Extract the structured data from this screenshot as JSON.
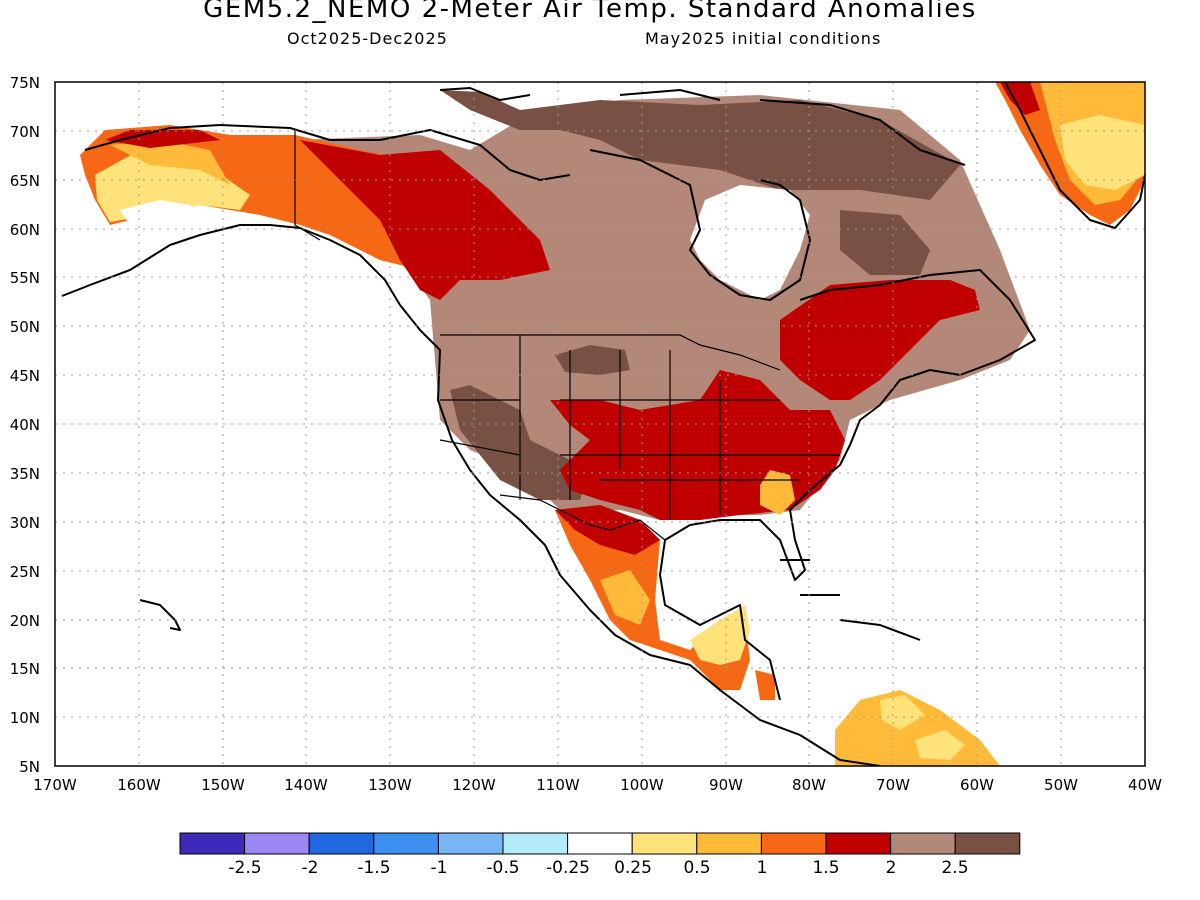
{
  "title": "GEM5.2_NEMO 2-Meter Air Temp. Standard Anomalies",
  "valid_period": "Oct2025-Dec2025",
  "initial_conditions": "May2025 initial conditions",
  "map": {
    "lon_range": [
      -170,
      -40
    ],
    "lat_range": [
      5,
      75
    ],
    "lat_ticks": [
      "75N",
      "70N",
      "65N",
      "60N",
      "55N",
      "50N",
      "45N",
      "40N",
      "35N",
      "30N",
      "25N",
      "20N",
      "15N",
      "10N",
      "5N"
    ],
    "lon_ticks": [
      "170W",
      "160W",
      "150W",
      "140W",
      "130W",
      "120W",
      "110W",
      "100W",
      "90W",
      "80W",
      "70W",
      "60W",
      "50W",
      "40W"
    ],
    "grid": "dotted"
  },
  "colorbar": {
    "colors": [
      "#3d2ab8",
      "#9c86f5",
      "#1f68e0",
      "#3d8ff0",
      "#78b6f5",
      "#b2ecfa",
      "#ffffff",
      "#ffe37a",
      "#ffba3a",
      "#f76814",
      "#c00000",
      "#b48878",
      "#785044"
    ],
    "labels": [
      "-2.5",
      "-2",
      "-1.5",
      "-1",
      "-0.5",
      "-0.25",
      "0.25",
      "0.5",
      "1",
      "1.5",
      "2",
      "2.5"
    ]
  }
}
